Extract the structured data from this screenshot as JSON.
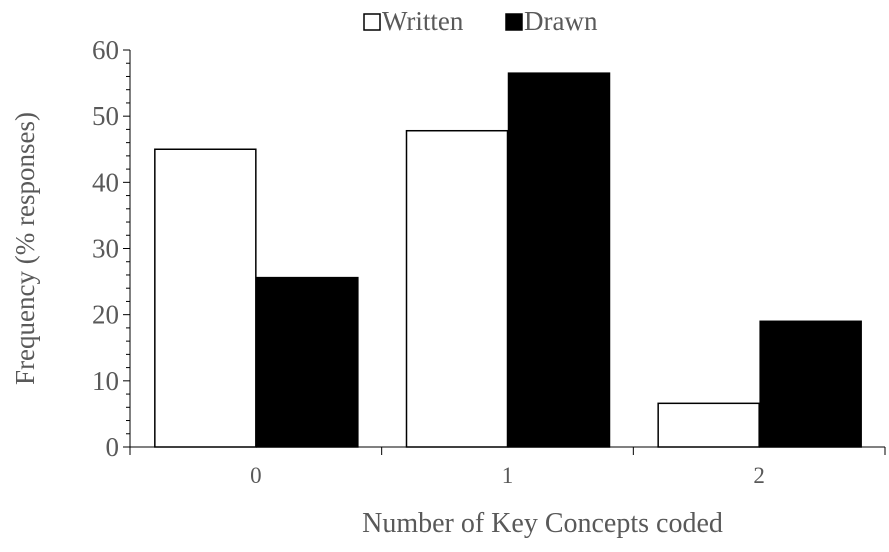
{
  "chart_data": {
    "type": "bar",
    "title": "",
    "xlabel": "Number of Key Concepts coded",
    "ylabel": "Frequency (% responses)",
    "categories": [
      "0",
      "1",
      "2"
    ],
    "series": [
      {
        "name": "Written",
        "values": [
          45.0,
          47.8,
          6.6
        ],
        "color": "#ffffff",
        "stroke": "#000000"
      },
      {
        "name": "Drawn",
        "values": [
          25.6,
          56.5,
          19.0
        ],
        "color": "#000000",
        "stroke": "#000000"
      }
    ],
    "ylim": [
      0,
      60
    ],
    "yticks": [
      0,
      10,
      20,
      30,
      40,
      50,
      60
    ],
    "grid": false,
    "legend": "top-center"
  }
}
